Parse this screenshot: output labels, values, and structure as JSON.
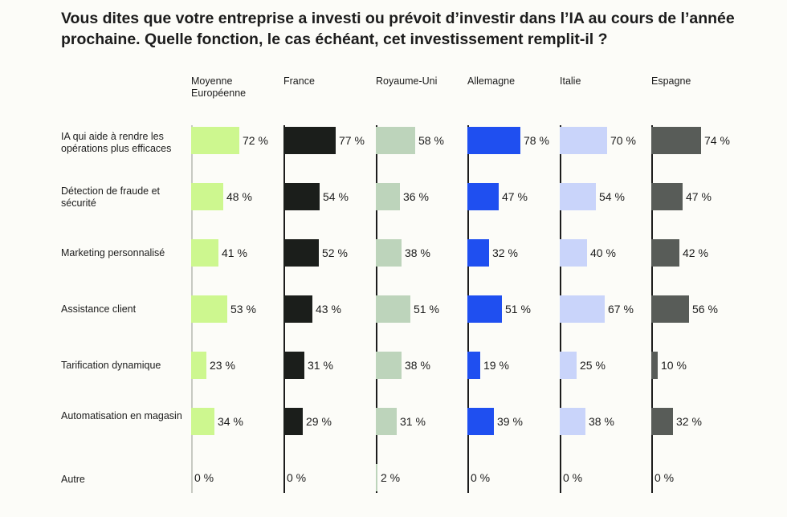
{
  "chart_data": {
    "type": "bar",
    "orientation": "horizontal",
    "layout": "small-multiples",
    "title": "Vous dites que votre entreprise a investi ou prévoit d’investir dans l’IA au cours de l’année prochaine. Quelle fonction, le cas échéant, cet investissement remplit-il ?",
    "categories": [
      "IA qui aide à rendre les opérations plus efficaces",
      "Détection de fraude et sécurité",
      "Marketing personnalisé",
      "Assistance client",
      "Tarification dynamique",
      "Automatisation en magasin",
      "Autre"
    ],
    "unit": "%",
    "xlim": [
      0,
      100
    ],
    "series": [
      {
        "name": "Moyenne Européenne",
        "color": "#cdf78f",
        "values": [
          72,
          48,
          41,
          53,
          23,
          34,
          0
        ]
      },
      {
        "name": "France",
        "color": "#1b1e1b",
        "values": [
          77,
          54,
          52,
          43,
          31,
          29,
          0
        ]
      },
      {
        "name": "Royaume-Uni",
        "color": "#bdd4bb",
        "values": [
          58,
          36,
          38,
          51,
          38,
          31,
          2
        ]
      },
      {
        "name": "Allemagne",
        "color": "#1f4ff0",
        "values": [
          78,
          47,
          32,
          51,
          19,
          39,
          0
        ]
      },
      {
        "name": "Italie",
        "color": "#c9d4fa",
        "values": [
          70,
          54,
          40,
          67,
          25,
          38,
          0
        ]
      },
      {
        "name": "Espagne",
        "color": "#585c58",
        "values": [
          74,
          47,
          42,
          56,
          10,
          32,
          0
        ]
      }
    ]
  }
}
